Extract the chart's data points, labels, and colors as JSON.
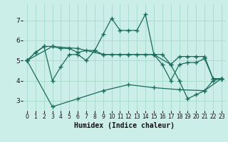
{
  "xlabel": "Humidex (Indice chaleur)",
  "bg_color": "#cceee8",
  "line_color": "#1a6b5a",
  "grid_color": "#aaddcc",
  "xlim": [
    -0.5,
    23.5
  ],
  "ylim": [
    2.5,
    7.8
  ],
  "xticks": [
    0,
    1,
    2,
    3,
    4,
    5,
    6,
    7,
    8,
    9,
    10,
    11,
    12,
    13,
    14,
    15,
    16,
    17,
    18,
    19,
    20,
    21,
    22,
    23
  ],
  "yticks": [
    3,
    4,
    5,
    6,
    7
  ],
  "series": [
    {
      "x": [
        0,
        1,
        2,
        3,
        4,
        5,
        6,
        7,
        8,
        9,
        10,
        11,
        12,
        13,
        14,
        15,
        16,
        17,
        18,
        19,
        20,
        21,
        22,
        23
      ],
      "y": [
        5.0,
        5.4,
        5.7,
        5.7,
        5.6,
        5.6,
        5.4,
        5.5,
        5.5,
        5.3,
        5.3,
        5.3,
        5.3,
        5.3,
        5.3,
        5.3,
        5.3,
        4.8,
        5.2,
        5.2,
        5.2,
        5.2,
        4.1,
        4.1
      ]
    },
    {
      "x": [
        0,
        1,
        2,
        3,
        4,
        5,
        6,
        7,
        8,
        9,
        10,
        11,
        12,
        13,
        14,
        15,
        16,
        17,
        18,
        19,
        20,
        21,
        22,
        23
      ],
      "y": [
        5.0,
        5.4,
        5.7,
        4.0,
        4.7,
        5.3,
        5.3,
        5.0,
        5.5,
        6.3,
        7.1,
        6.5,
        6.5,
        6.5,
        7.3,
        5.3,
        4.8,
        4.0,
        4.8,
        4.9,
        4.9,
        5.1,
        4.1,
        4.1
      ]
    },
    {
      "x": [
        0,
        3,
        6,
        9,
        12,
        15,
        18,
        21,
        23
      ],
      "y": [
        5.0,
        2.7,
        3.1,
        3.5,
        3.8,
        3.65,
        3.55,
        3.5,
        4.1
      ]
    },
    {
      "x": [
        0,
        3,
        6,
        9,
        12,
        15,
        17,
        18,
        19,
        20,
        21,
        22,
        23
      ],
      "y": [
        5.0,
        5.7,
        5.6,
        5.3,
        5.3,
        5.3,
        4.8,
        4.0,
        3.1,
        3.3,
        3.5,
        4.0,
        4.1
      ]
    }
  ]
}
